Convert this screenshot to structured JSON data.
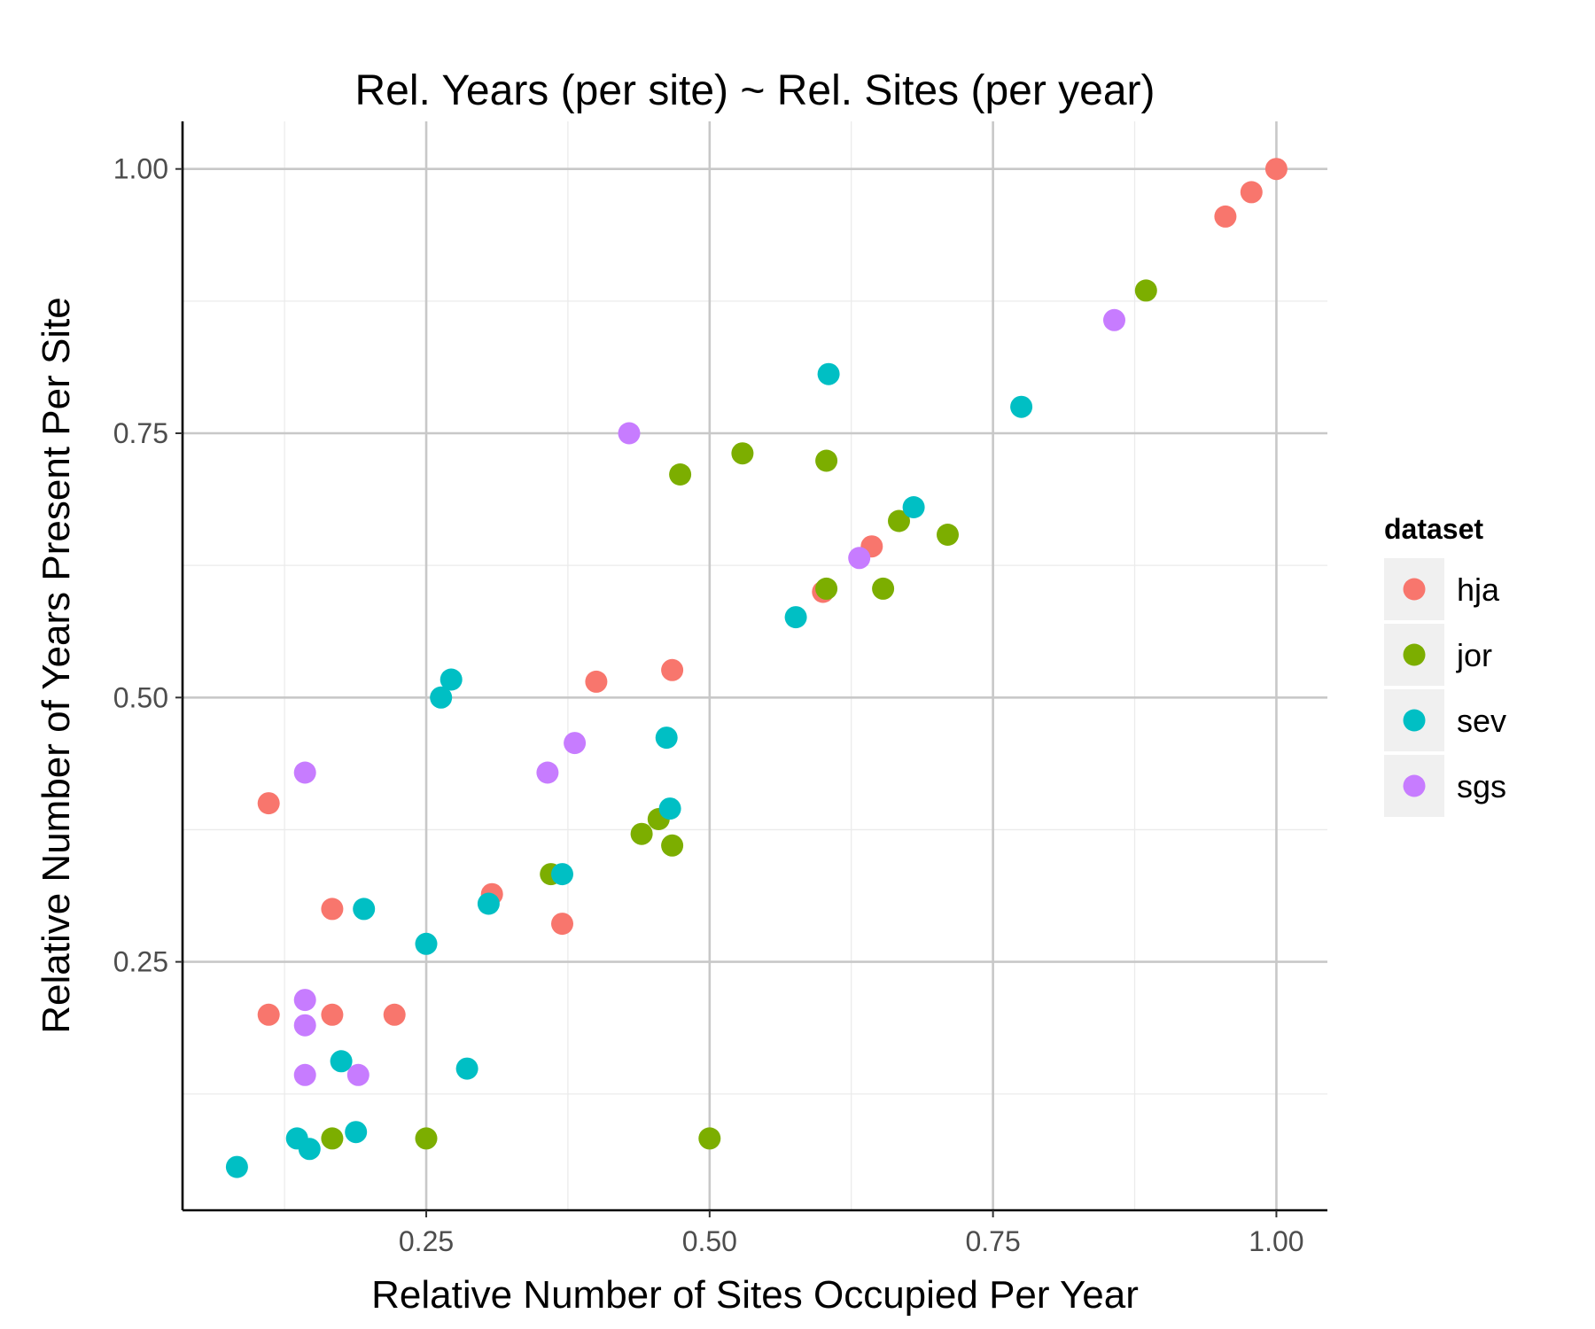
{
  "chart_data": {
    "type": "scatter",
    "title": "Rel. Years (per site) ~ Rel. Sites (per year)",
    "xlabel": "Relative Number of Sites Occupied Per Year",
    "ylabel": "Relative Number of Years Present Per Site",
    "xlim": [
      0.035,
      1.045
    ],
    "ylim": [
      0.015,
      1.045
    ],
    "x_major_ticks": [
      0.25,
      0.5,
      0.75,
      1.0
    ],
    "x_tick_labels": [
      "0.25",
      "0.50",
      "0.75",
      "1.00"
    ],
    "x_minor_ticks": [
      0.125,
      0.375,
      0.625,
      0.875
    ],
    "y_major_ticks": [
      0.25,
      0.5,
      0.75,
      1.0
    ],
    "y_tick_labels": [
      "0.25",
      "0.50",
      "0.75",
      "1.00"
    ],
    "y_minor_ticks": [
      0.125,
      0.375,
      0.625,
      0.875
    ],
    "grid": true,
    "legend": {
      "title": "dataset",
      "position": "right"
    },
    "series": [
      {
        "name": "hja",
        "color": "#F8766D",
        "points": [
          [
            1.0,
            1.0
          ],
          [
            0.978,
            0.978
          ],
          [
            0.955,
            0.955
          ],
          [
            0.643,
            0.643
          ],
          [
            0.6,
            0.6
          ],
          [
            0.467,
            0.526
          ],
          [
            0.4,
            0.515
          ],
          [
            0.111,
            0.4
          ],
          [
            0.167,
            0.3
          ],
          [
            0.308,
            0.314
          ],
          [
            0.37,
            0.286
          ],
          [
            0.111,
            0.2
          ],
          [
            0.167,
            0.2
          ],
          [
            0.222,
            0.2
          ]
        ]
      },
      {
        "name": "jor",
        "color": "#7CAE00",
        "points": [
          [
            0.885,
            0.885
          ],
          [
            0.529,
            0.731
          ],
          [
            0.603,
            0.724
          ],
          [
            0.474,
            0.711
          ],
          [
            0.667,
            0.667
          ],
          [
            0.71,
            0.654
          ],
          [
            0.603,
            0.603
          ],
          [
            0.653,
            0.603
          ],
          [
            0.455,
            0.385
          ],
          [
            0.44,
            0.371
          ],
          [
            0.467,
            0.36
          ],
          [
            0.36,
            0.333
          ],
          [
            0.167,
            0.083
          ],
          [
            0.25,
            0.083
          ],
          [
            0.5,
            0.083
          ]
        ]
      },
      {
        "name": "sev",
        "color": "#00BFC4",
        "points": [
          [
            0.605,
            0.806
          ],
          [
            0.775,
            0.775
          ],
          [
            0.68,
            0.68
          ],
          [
            0.576,
            0.576
          ],
          [
            0.272,
            0.517
          ],
          [
            0.263,
            0.5
          ],
          [
            0.462,
            0.462
          ],
          [
            0.465,
            0.395
          ],
          [
            0.37,
            0.333
          ],
          [
            0.195,
            0.3
          ],
          [
            0.305,
            0.305
          ],
          [
            0.25,
            0.267
          ],
          [
            0.175,
            0.156
          ],
          [
            0.286,
            0.149
          ],
          [
            0.188,
            0.089
          ],
          [
            0.136,
            0.083
          ],
          [
            0.147,
            0.073
          ],
          [
            0.083,
            0.056
          ]
        ]
      },
      {
        "name": "sgs",
        "color": "#C77CFF",
        "points": [
          [
            0.857,
            0.857
          ],
          [
            0.429,
            0.75
          ],
          [
            0.632,
            0.632
          ],
          [
            0.381,
            0.457
          ],
          [
            0.357,
            0.429
          ],
          [
            0.143,
            0.429
          ],
          [
            0.143,
            0.214
          ],
          [
            0.143,
            0.19
          ],
          [
            0.143,
            0.143
          ],
          [
            0.19,
            0.143
          ]
        ]
      }
    ]
  }
}
